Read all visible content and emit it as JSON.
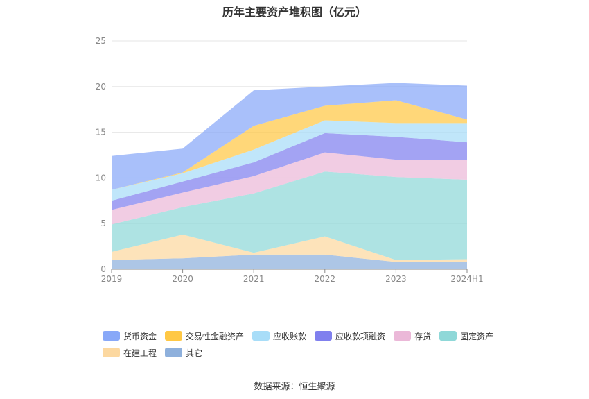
{
  "chart_data": {
    "type": "area",
    "stacked": true,
    "title": "历年主要资产堆积图（亿元）",
    "source": "数据来源：恒生聚源",
    "categories": [
      "2019",
      "2020",
      "2021",
      "2022",
      "2023",
      "2024H1"
    ],
    "ylim": [
      0,
      25
    ],
    "yticks": [
      "0",
      "5",
      "10",
      "15",
      "20",
      "25"
    ],
    "grid": true,
    "legend_position": "bottom",
    "series": [
      {
        "name": "其它",
        "color": "#8eb0dc",
        "values": [
          1.0,
          1.2,
          1.6,
          1.6,
          0.8,
          0.8
        ]
      },
      {
        "name": "在建工程",
        "color": "#fcd8a0",
        "values": [
          0.9,
          2.6,
          0.2,
          2.0,
          0.2,
          0.3
        ]
      },
      {
        "name": "固定资产",
        "color": "#8fd8d8",
        "values": [
          3.0,
          3.0,
          6.5,
          7.1,
          9.1,
          8.7
        ]
      },
      {
        "name": "存货",
        "color": "#ebb8d8",
        "values": [
          1.6,
          1.6,
          1.9,
          2.1,
          1.9,
          2.2
        ]
      },
      {
        "name": "应收款项融资",
        "color": "#8080ee",
        "values": [
          1.0,
          1.2,
          1.5,
          2.1,
          2.5,
          1.9
        ]
      },
      {
        "name": "应收账款",
        "color": "#a8ddf8",
        "values": [
          1.2,
          0.9,
          1.4,
          1.4,
          1.5,
          2.1
        ]
      },
      {
        "name": "交易性金融资产",
        "color": "#ffc845",
        "values": [
          0.0,
          0.1,
          2.6,
          1.6,
          2.5,
          0.4
        ]
      },
      {
        "name": "货币资金",
        "color": "#88a8f8",
        "values": [
          3.7,
          2.6,
          3.9,
          2.1,
          1.9,
          3.7
        ]
      }
    ]
  },
  "legend_order": [
    6,
    5,
    4,
    3,
    2,
    1,
    0,
    7
  ],
  "legend_rows": [
    [
      "货币资金",
      "交易性金融资产",
      "应收账款",
      "应收款项融资",
      "存货",
      "固定资产"
    ],
    [
      "在建工程",
      "其它"
    ]
  ]
}
